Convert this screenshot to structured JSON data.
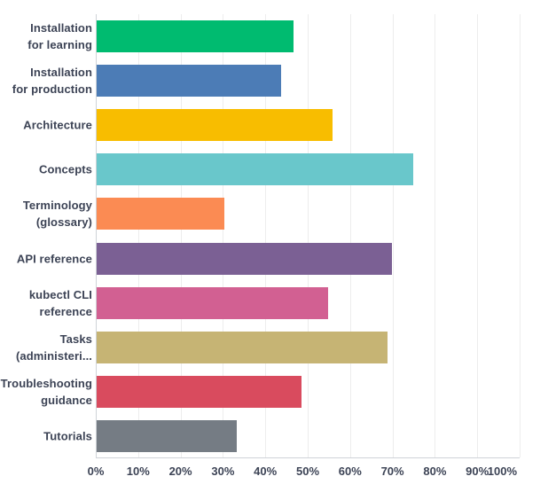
{
  "chart_data": {
    "type": "bar",
    "orientation": "horizontal",
    "title": "",
    "xlabel": "",
    "ylabel": "",
    "xlim": [
      0,
      100
    ],
    "grid": "vertical-only",
    "legend": "none",
    "categories": [
      "Installation for learning",
      "Installation for production",
      "Architecture",
      "Concepts",
      "Terminology (glossary)",
      "API reference",
      "kubectl CLI reference",
      "Tasks (administeri...",
      "Troubleshooting guidance",
      "Tutorials"
    ],
    "label_lines": [
      [
        "Installation",
        "for learning"
      ],
      [
        "Installation",
        "for production"
      ],
      [
        "Architecture"
      ],
      [
        "Concepts"
      ],
      [
        "Terminology",
        "(glossary)"
      ],
      [
        "API reference"
      ],
      [
        "kubectl CLI",
        "reference"
      ],
      [
        "Tasks",
        "(administeri..."
      ],
      [
        "Troubleshooting",
        "guidance"
      ],
      [
        "Tutorials"
      ]
    ],
    "slugs": [
      "installation-for-learning",
      "installation-for-production",
      "architecture",
      "concepts",
      "terminology-glossary",
      "api-reference",
      "kubectl-cli-reference",
      "tasks-administering",
      "troubleshooting-guidance",
      "tutorials"
    ],
    "values": [
      46.4,
      43.6,
      55.6,
      74.6,
      30.2,
      69.7,
      54.5,
      68.6,
      48.4,
      33.1
    ],
    "colors": [
      "#00BB70",
      "#4C7CB6",
      "#F8BD00",
      "#69C7CB",
      "#FB8B53",
      "#7B6094",
      "#D26092",
      "#C6B474",
      "#D94B5E",
      "#757C84"
    ],
    "x_tick_values": [
      0,
      10,
      20,
      30,
      40,
      50,
      60,
      70,
      80,
      90,
      100
    ],
    "x_tick_labels": [
      "0%",
      "10%",
      "20%",
      "30%",
      "40%",
      "50%",
      "60%",
      "70%",
      "80%",
      "90%",
      "100%"
    ]
  },
  "style": {
    "background": "#FFFFFF",
    "label_color": "#3C4355",
    "tick_color": "#3C4355",
    "grid_color": "#EDEDED",
    "axis_color": "#CFD3D8"
  }
}
